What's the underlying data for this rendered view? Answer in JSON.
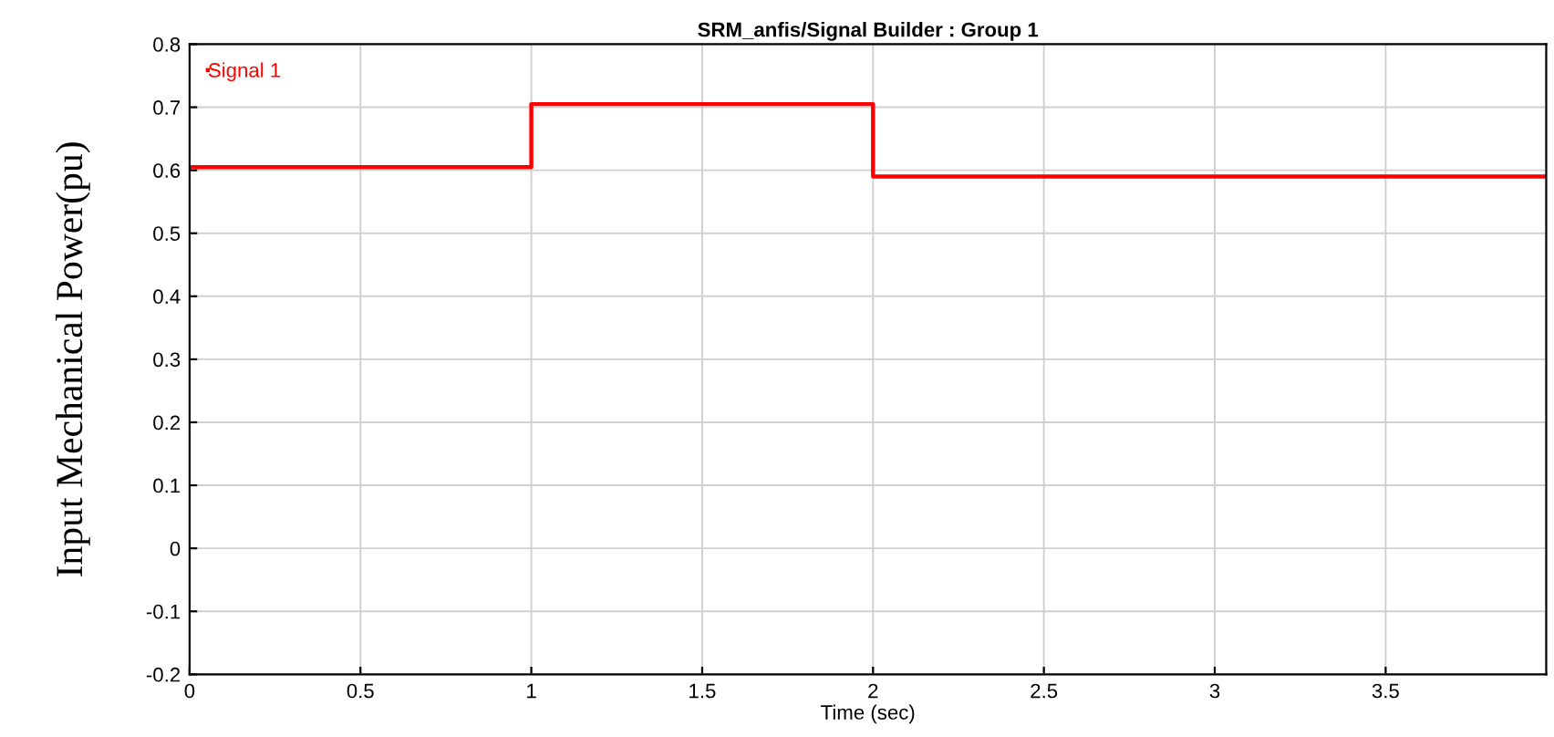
{
  "chart_data": {
    "type": "step",
    "title": "SRM_anfis/Signal Builder : Group 1",
    "xlabel": "Time (sec)",
    "ylabel": "Input Mechanical Power(pu)",
    "x": [
      0,
      1,
      2,
      3.97
    ],
    "series": [
      {
        "name": "Signal 1",
        "color": "#ff0000",
        "values": [
          0.605,
          0.705,
          0.59,
          0.59
        ]
      }
    ],
    "xlim": [
      0,
      3.97
    ],
    "xticks": [
      0,
      0.5,
      1,
      1.5,
      2,
      2.5,
      3,
      3.5
    ],
    "ylim": [
      -0.2,
      0.8
    ],
    "yticks": [
      -0.2,
      -0.1,
      0,
      0.1,
      0.2,
      0.3,
      0.4,
      0.5,
      0.6,
      0.7,
      0.8
    ],
    "grid": true,
    "legend": "top left"
  }
}
